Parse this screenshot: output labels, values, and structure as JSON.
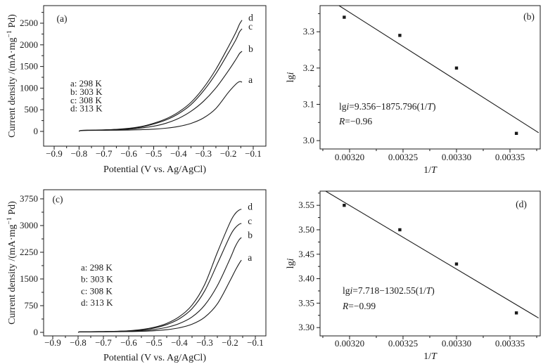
{
  "figure": {
    "background": "#ffffff",
    "line_color": "#1a1a1a",
    "text_color": "#1a1a1a"
  },
  "chart_data": [
    {
      "id": "panel-a",
      "type": "line",
      "panel_label": "(a)",
      "xlabel_text": "Potential (V vs. Ag/AgCl)",
      "ylabel_text": "Current density /(mA·mg⁻¹ Pd)",
      "xlabel_segments": [
        [
          "Potential (V vs. Ag/AgCl)",
          0
        ]
      ],
      "ylabel_segments": [
        [
          "Current density /(mA·mg",
          0
        ],
        [
          "−1",
          2
        ],
        [
          " Pd)",
          0
        ]
      ],
      "xlim": [
        -0.9424,
        -0.0491
      ],
      "ylim": [
        -341,
        2906
      ],
      "xticks": [
        -0.9,
        -0.8,
        -0.7,
        -0.6,
        -0.5,
        -0.4,
        -0.3,
        -0.2,
        -0.1
      ],
      "xtick_labels": [
        "−0.9",
        "−0.8",
        "−0.7",
        "−0.6",
        "−0.5",
        "−0.4",
        "−0.3",
        "−0.2",
        "−0.1"
      ],
      "xminor": [
        -0.85,
        -0.75,
        -0.65,
        -0.55,
        -0.45,
        -0.35,
        -0.25,
        -0.15
      ],
      "yticks": [
        0,
        500,
        1000,
        1500,
        2000,
        2500
      ],
      "ytick_labels": [
        "0",
        "500",
        "1000",
        "1500",
        "2000",
        "2500"
      ],
      "yminor": [
        250,
        750,
        1250,
        1750,
        2250,
        2750
      ],
      "legend_lines": [
        "a: 298 K",
        "b: 303 K",
        "c: 308 K",
        "d: 313 K"
      ],
      "x": [
        -0.8,
        -0.79,
        -0.75,
        -0.7,
        -0.65,
        -0.6,
        -0.55,
        -0.5,
        -0.45,
        -0.4,
        -0.35,
        -0.3,
        -0.25,
        -0.2,
        -0.17,
        -0.155,
        -0.145
      ],
      "series": [
        {
          "name": "a",
          "end_label": "a",
          "y": [
            5,
            20,
            24,
            26,
            28,
            32,
            40,
            52,
            75,
            115,
            185,
            310,
            530,
            900,
            1090,
            1150,
            1138
          ]
        },
        {
          "name": "b",
          "end_label": "b",
          "y": [
            5,
            22,
            26,
            30,
            38,
            52,
            78,
            120,
            190,
            300,
            465,
            695,
            1005,
            1400,
            1660,
            1800,
            1850
          ]
        },
        {
          "name": "c",
          "end_label": "c",
          "y": [
            5,
            24,
            28,
            34,
            45,
            65,
            100,
            170,
            265,
            410,
            620,
            935,
            1335,
            1815,
            2115,
            2300,
            2370
          ]
        },
        {
          "name": "d",
          "end_label": "d",
          "y": [
            5,
            24,
            29,
            36,
            48,
            72,
            112,
            188,
            292,
            448,
            672,
            1005,
            1435,
            1955,
            2285,
            2480,
            2570
          ]
        }
      ]
    },
    {
      "id": "panel-b",
      "type": "scatter",
      "panel_label": "(b)",
      "xlabel_text": "1/T",
      "ylabel_text": "lgi",
      "xlabel_segments": [
        [
          "1/",
          0
        ],
        [
          "T",
          1
        ]
      ],
      "ylabel_segments": [
        [
          "lg",
          0
        ],
        [
          "i",
          1
        ]
      ],
      "xlim": [
        0.0031724,
        0.0033783
      ],
      "ylim": [
        2.977,
        3.372
      ],
      "xticks": [
        0.0032,
        0.00325,
        0.0033,
        0.00335
      ],
      "xtick_labels": [
        "0.00320",
        "0.00325",
        "0.00330",
        "0.00335"
      ],
      "xminor": [
        0.003175,
        0.003225,
        0.003275,
        0.003325,
        0.003375
      ],
      "yticks": [
        3.0,
        3.1,
        3.2,
        3.3
      ],
      "ytick_labels": [
        "3.0",
        "3.1",
        "3.2",
        "3.3"
      ],
      "yminor": [
        3.05,
        3.15,
        3.25,
        3.35
      ],
      "points": {
        "x": [
          0.003195,
          0.003247,
          0.0033,
          0.003356
        ],
        "y": [
          3.34,
          3.29,
          3.2,
          3.02
        ]
      },
      "fit": {
        "intercept": 9.356,
        "slope": -1875.796
      },
      "equation_text": "lgi=9.356−1875.796(1/T)",
      "r_text": "R=−0.96",
      "equation_segments": [
        [
          "lg",
          0
        ],
        [
          "i",
          1
        ],
        [
          "=9.356−1875.796(1/",
          0
        ],
        [
          "T",
          1
        ],
        [
          ")",
          0
        ]
      ],
      "r_segments": [
        [
          "R",
          1
        ],
        [
          "=−0.96",
          0
        ]
      ]
    },
    {
      "id": "panel-c",
      "type": "line",
      "panel_label": "(c)",
      "xlabel_text": "Potential (V vs. Ag/AgCl)",
      "ylabel_text": "Current density /(mA·mg⁻¹ Pd)",
      "xlabel_segments": [
        [
          "Potential (V vs. Ag/AgCl)",
          0
        ]
      ],
      "ylabel_segments": [
        [
          "Current density /(mA·mg",
          0
        ],
        [
          "−1",
          2
        ],
        [
          " Pd)",
          0
        ]
      ],
      "xlim": [
        -0.9361,
        -0.0583
      ],
      "ylim": [
        -99,
        4006
      ],
      "xticks": [
        -0.9,
        -0.8,
        -0.7,
        -0.6,
        -0.5,
        -0.4,
        -0.3,
        -0.2,
        -0.1
      ],
      "xtick_labels": [
        "−0.9",
        "−0.8",
        "−0.7",
        "−0.6",
        "−0.5",
        "−0.4",
        "−0.3",
        "−0.2",
        "−0.1"
      ],
      "xminor": [
        -0.85,
        -0.75,
        -0.65,
        -0.55,
        -0.45,
        -0.35,
        -0.25,
        -0.15
      ],
      "yticks": [
        0,
        750,
        1500,
        2250,
        3000,
        3750
      ],
      "ytick_labels": [
        "0",
        "750",
        "1500",
        "2250",
        "3000",
        "3750"
      ],
      "yminor": [
        375,
        1125,
        1875,
        2625,
        3375
      ],
      "legend_lines": [
        "a: 298 K",
        "b: 303 K",
        "c: 308 K",
        "d: 313 K"
      ],
      "x": [
        -0.8,
        -0.79,
        -0.75,
        -0.7,
        -0.65,
        -0.6,
        -0.55,
        -0.5,
        -0.45,
        -0.4,
        -0.35,
        -0.3,
        -0.25,
        -0.2,
        -0.18,
        -0.165,
        -0.155
      ],
      "series": [
        {
          "name": "a",
          "end_label": "a",
          "y": [
            5,
            12,
            14,
            16,
            18,
            22,
            30,
            45,
            75,
            128,
            228,
            425,
            800,
            1450,
            1730,
            1920,
            2030
          ]
        },
        {
          "name": "b",
          "end_label": "b",
          "y": [
            5,
            13,
            16,
            19,
            24,
            32,
            48,
            80,
            140,
            248,
            432,
            765,
            1310,
            2065,
            2400,
            2590,
            2665
          ]
        },
        {
          "name": "c",
          "end_label": "c",
          "y": [
            5,
            15,
            18,
            22,
            28,
            40,
            68,
            122,
            218,
            382,
            665,
            1165,
            1925,
            2705,
            2930,
            3030,
            3060
          ]
        },
        {
          "name": "d",
          "end_label": "d",
          "y": [
            5,
            15,
            19,
            24,
            31,
            46,
            80,
            142,
            252,
            442,
            765,
            1345,
            2245,
            3085,
            3330,
            3430,
            3460
          ]
        }
      ]
    },
    {
      "id": "panel-d",
      "type": "scatter",
      "panel_label": "(d)",
      "xlabel_text": "1/T",
      "ylabel_text": "lgi",
      "xlabel_segments": [
        [
          "1/",
          0
        ],
        [
          "T",
          1
        ]
      ],
      "ylabel_segments": [
        [
          "lg",
          0
        ],
        [
          "i",
          1
        ]
      ],
      "xlim": [
        0.0031724,
        0.0033783
      ],
      "ylim": [
        3.283,
        3.579
      ],
      "xticks": [
        0.0032,
        0.00325,
        0.0033,
        0.00335
      ],
      "xtick_labels": [
        "0.00320",
        "0.00325",
        "0.00330",
        "0.00335"
      ],
      "xminor": [
        0.003175,
        0.003225,
        0.003275,
        0.003325,
        0.003375
      ],
      "yticks": [
        3.3,
        3.35,
        3.4,
        3.45,
        3.5,
        3.55
      ],
      "ytick_labels": [
        "3.30",
        "3.35",
        "3.40",
        "3.45",
        "3.50",
        "3.55"
      ],
      "yminor": [
        3.325,
        3.375,
        3.425,
        3.475,
        3.525,
        3.575
      ],
      "points": {
        "x": [
          0.003195,
          0.003247,
          0.0033,
          0.003356
        ],
        "y": [
          3.55,
          3.5,
          3.43,
          3.33
        ]
      },
      "fit": {
        "intercept": 7.718,
        "slope": -1302.55
      },
      "equation_text": "lgi=7.718−1302.55(1/T)",
      "r_text": "R=−0.99",
      "equation_segments": [
        [
          "lg",
          0
        ],
        [
          "i",
          1
        ],
        [
          "=7.718−1302.55(1/",
          0
        ],
        [
          "T",
          1
        ],
        [
          ")",
          0
        ]
      ],
      "r_segments": [
        [
          "R",
          1
        ],
        [
          "=−0.99",
          0
        ]
      ]
    }
  ]
}
